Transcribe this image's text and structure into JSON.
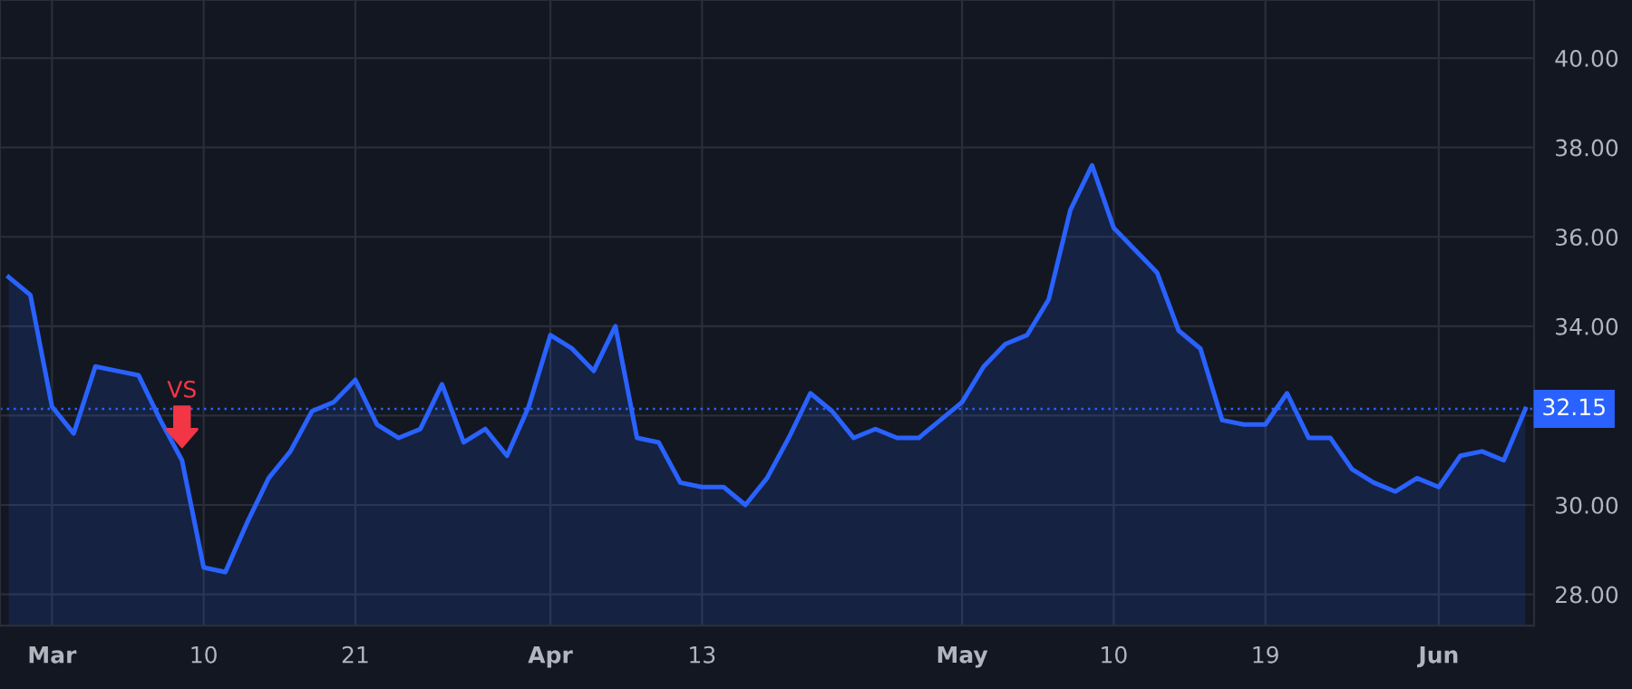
{
  "chart_data": {
    "type": "area",
    "categories": [
      null,
      null,
      "Mar",
      null,
      null,
      null,
      null,
      null,
      null,
      "10",
      null,
      null,
      null,
      null,
      null,
      null,
      "21",
      null,
      null,
      null,
      null,
      null,
      null,
      null,
      null,
      "Apr",
      null,
      null,
      null,
      null,
      null,
      null,
      "13",
      null,
      null,
      null,
      null,
      null,
      null,
      null,
      null,
      null,
      null,
      null,
      "May",
      null,
      null,
      null,
      null,
      null,
      null,
      "10",
      null,
      null,
      null,
      null,
      null,
      null,
      "19",
      null,
      null,
      null,
      null,
      null,
      null,
      null,
      "Jun",
      null,
      null,
      null,
      null
    ],
    "series": [
      {
        "color": "#2962ff",
        "values": [
          35.1,
          34.7,
          32.2,
          31.6,
          33.1,
          33.0,
          32.9,
          31.9,
          31.0,
          28.6,
          28.5,
          29.6,
          30.6,
          31.2,
          32.1,
          32.3,
          32.8,
          31.8,
          31.5,
          31.7,
          32.7,
          31.4,
          31.7,
          31.1,
          32.2,
          33.8,
          33.5,
          33.0,
          34.0,
          31.5,
          31.4,
          30.5,
          30.4,
          30.4,
          30.0,
          30.6,
          31.5,
          32.5,
          32.1,
          31.5,
          31.7,
          31.5,
          31.5,
          31.9,
          32.3,
          33.1,
          33.6,
          33.8,
          34.6,
          36.6,
          37.6,
          36.2,
          35.7,
          35.2,
          33.9,
          33.5,
          31.9,
          31.8,
          31.8,
          32.5,
          31.5,
          31.5,
          30.8,
          30.5,
          30.3,
          30.6,
          30.4,
          31.1,
          31.2,
          31.0,
          32.15
        ]
      }
    ],
    "ylim": [
      27.3,
      41.3
    ],
    "yticks": [
      {
        "value": 28,
        "label": "28.00"
      },
      {
        "value": 30,
        "label": "30.00"
      },
      {
        "value": 32,
        "label": null
      },
      {
        "value": 34,
        "label": "34.00"
      },
      {
        "value": 36,
        "label": "36.00"
      },
      {
        "value": 38,
        "label": "38.00"
      },
      {
        "value": 40,
        "label": "40.00"
      }
    ],
    "ref_lines": [
      {
        "axis": "y",
        "value": 32.15,
        "label": "32.15",
        "color": "#2962ff",
        "line_style": "dotted"
      }
    ],
    "annotations": [
      {
        "text": "VS",
        "y": 31.0
      }
    ],
    "grid": true,
    "legend": false
  }
}
